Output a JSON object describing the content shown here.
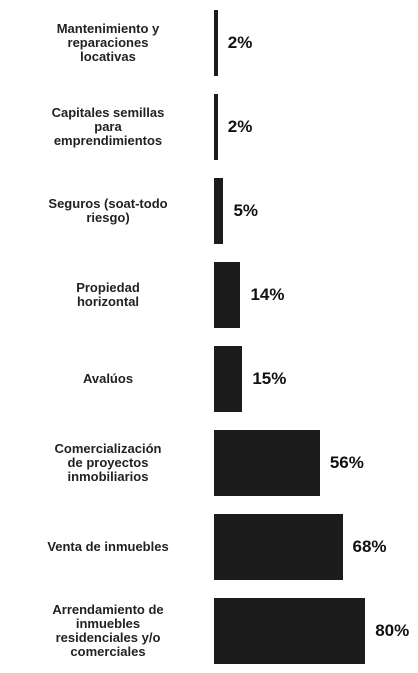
{
  "chart_data": {
    "type": "bar",
    "orientation": "horizontal",
    "categories": [
      "Mantenimiento y\nreparaciones\nlocativas",
      "Capitales semillas\npara\nemprendimientos",
      "Seguros (soat-todo\nriesgo)",
      "Propiedad\nhorizontal",
      "Avalúos",
      "Comercialización\nde proyectos\ninmobiliarios",
      "Venta de inmuebles",
      "Arrendamiento de\ninmuebles\nresidenciales y/o\ncomerciales"
    ],
    "values": [
      2,
      2,
      5,
      14,
      15,
      56,
      68,
      80
    ],
    "value_labels": [
      "2%",
      "2%",
      "5%",
      "14%",
      "15%",
      "56%",
      "68%",
      "80%"
    ],
    "color": "#1c1c1c"
  }
}
